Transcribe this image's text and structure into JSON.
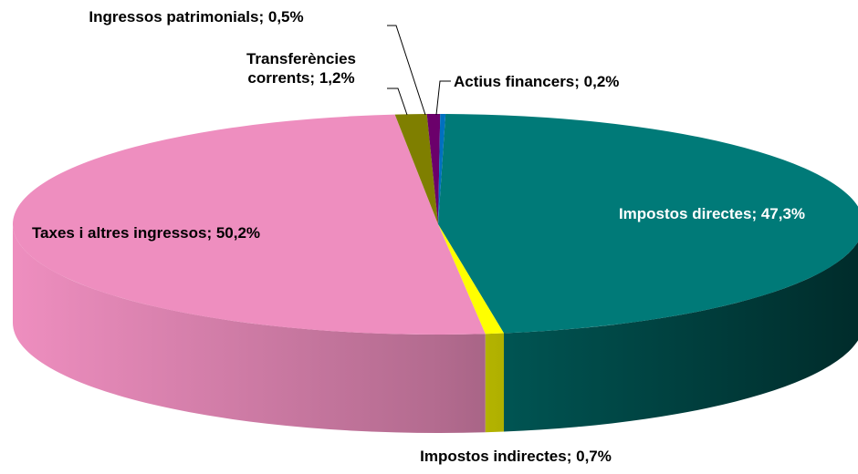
{
  "chart_data": {
    "type": "pie3d",
    "categories": [
      "Impostos directes;",
      "Impostos indirectes;",
      "Taxes i altres ingressos;",
      "Transferències corrents;",
      "Ingressos patrimonials;",
      "Actius financers;"
    ],
    "values": [
      47.3,
      0.7,
      50.2,
      1.2,
      0.5,
      0.2
    ],
    "value_labels": [
      "47,3%",
      "0,7%",
      "50,2%",
      "1,2%",
      "0,5%",
      "0,2%"
    ],
    "colors": [
      "#007a78",
      "#ffff00",
      "#ee8ebf",
      "#7f7f00",
      "#6b006b",
      "#0070c0"
    ]
  }
}
